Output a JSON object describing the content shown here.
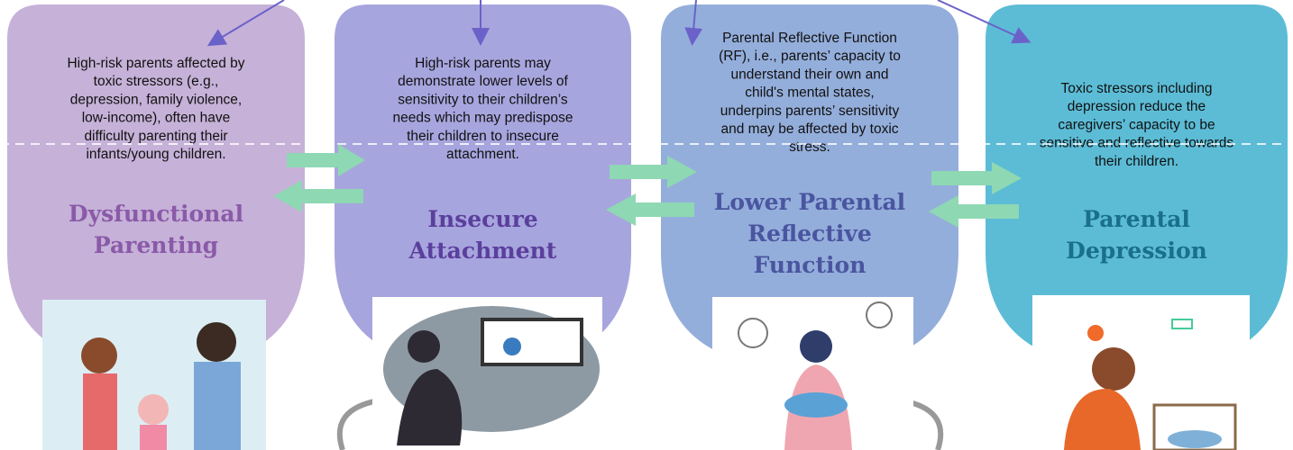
{
  "panels": [
    {
      "body": [
        "High-risk parents affected by",
        "toxic stressors (e.g.,",
        "depression, family violence,",
        "low-income), often have",
        "difficulty parenting their",
        "infants/young children."
      ],
      "title": [
        "Dysfunctional",
        "Parenting"
      ]
    },
    {
      "body": [
        "High-risk parents may",
        "demonstrate lower levels of",
        "sensitivity to their children’s",
        "needs which may predispose",
        "their children to insecure",
        "attachment."
      ],
      "title": [
        "Insecure",
        "Attachment"
      ]
    },
    {
      "body": [
        "Parental Reflective Function",
        "(RF), i.e., parents’ capacity to",
        "understand their own and",
        "child's mental states,",
        "underpins parents’ sensitivity",
        "and may be affected by toxic",
        "stress."
      ],
      "title": [
        "Lower Parental",
        "Reflective",
        "Function"
      ]
    },
    {
      "body": [
        "Toxic stressors  including",
        "depression reduce the",
        "caregivers’ capacity to be",
        "sensitive and reflective towards",
        "their children."
      ],
      "title": [
        "Parental",
        "Depression"
      ]
    }
  ]
}
